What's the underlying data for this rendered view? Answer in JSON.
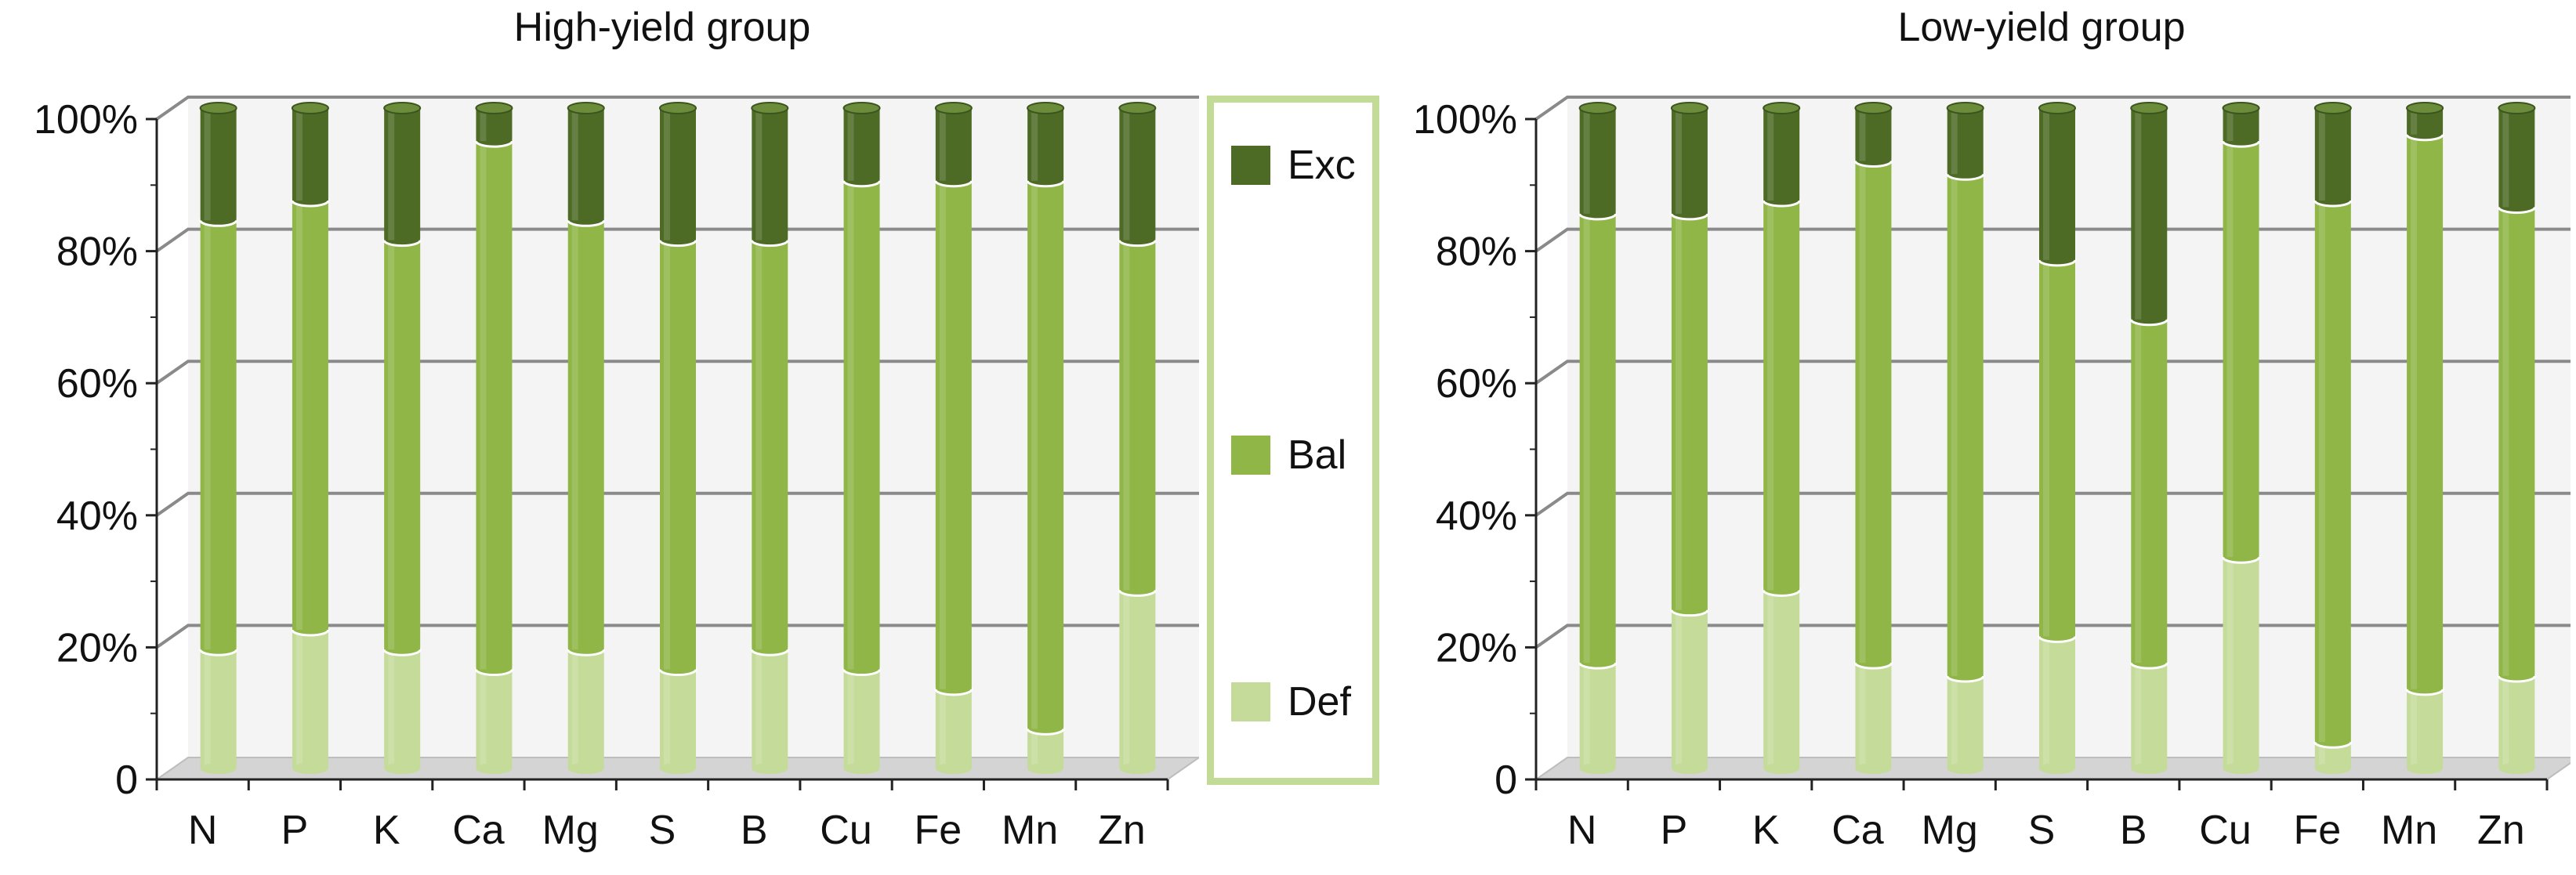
{
  "colors": {
    "Def": "#c4db9a",
    "Bal": "#8fb646",
    "Exc": "#4d6b25"
  },
  "legend": [
    {
      "label": "Exc",
      "color": "#4d6b25"
    },
    {
      "label": "Bal",
      "color": "#8fb646"
    },
    {
      "label": "Def",
      "color": "#c4db9a"
    }
  ],
  "chart_data": [
    {
      "type": "bar",
      "stacked": true,
      "title": "High-yield group",
      "categories": [
        "N",
        "P",
        "K",
        "Ca",
        "Mg",
        "S",
        "B",
        "Cu",
        "Fe",
        "Mn",
        "Zn"
      ],
      "yticks": [
        "0",
        "20%",
        "40%",
        "60%",
        "80%",
        "100%"
      ],
      "ylim": [
        0,
        100
      ],
      "grid": true,
      "series": [
        {
          "name": "Def",
          "values": [
            18,
            21,
            18,
            15,
            18,
            15,
            18,
            15,
            12,
            6,
            27
          ]
        },
        {
          "name": "Bal",
          "values": [
            65,
            65,
            62,
            80,
            65,
            65,
            62,
            74,
            77,
            83,
            53
          ]
        },
        {
          "name": "Exc",
          "values": [
            17,
            14,
            20,
            5,
            17,
            20,
            20,
            11,
            11,
            11,
            20
          ]
        }
      ]
    },
    {
      "type": "bar",
      "stacked": true,
      "title": "Low-yield group",
      "categories": [
        "N",
        "P",
        "K",
        "Ca",
        "Mg",
        "S",
        "B",
        "Cu",
        "Fe",
        "Mn",
        "Zn"
      ],
      "yticks": [
        "0",
        "20%",
        "40%",
        "60%",
        "80%",
        "100%"
      ],
      "ylim": [
        0,
        100
      ],
      "grid": true,
      "series": [
        {
          "name": "Def",
          "values": [
            16,
            24,
            27,
            16,
            14,
            20,
            16,
            32,
            4,
            12,
            14
          ]
        },
        {
          "name": "Bal",
          "values": [
            68,
            60,
            59,
            76,
            76,
            57,
            52,
            63,
            82,
            84,
            71
          ]
        },
        {
          "name": "Exc",
          "values": [
            16,
            16,
            14,
            8,
            10,
            23,
            32,
            5,
            14,
            4,
            15
          ]
        }
      ]
    }
  ]
}
